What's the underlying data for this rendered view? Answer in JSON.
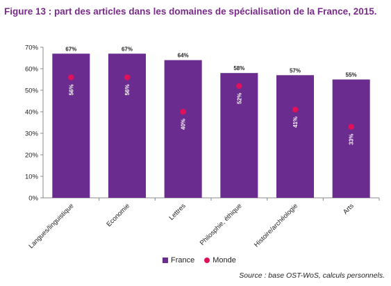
{
  "title": "Figure 13 : part des articles dans les domaines de spécialisation de la France, 2015.",
  "chart_data": {
    "type": "bar",
    "categories": [
      "Langues/linguistique",
      "Economie",
      "Lettres",
      "Philosphie, éthique",
      "Histoire/archéologie",
      "Arts"
    ],
    "series": [
      {
        "name": "France",
        "values": [
          67,
          67,
          64,
          58,
          57,
          55
        ],
        "labels": [
          "67%",
          "67%",
          "64%",
          "58%",
          "57%",
          "55%"
        ],
        "color": "#6a2c8e"
      },
      {
        "name": "Monde",
        "values": [
          56,
          56,
          40,
          52,
          41,
          33
        ],
        "labels": [
          "56%",
          "56%",
          "40%",
          "52%",
          "41%",
          "33%"
        ],
        "color": "#e0105a"
      }
    ],
    "yticks": [
      "0%",
      "10%",
      "20%",
      "30%",
      "40%",
      "50%",
      "60%",
      "70%"
    ],
    "ylim": [
      0,
      70
    ],
    "grid": false,
    "legend_position": "bottom"
  },
  "legend": {
    "france": "France",
    "monde": "Monde"
  },
  "source": "Source : base OST-WoS, calculs personnels."
}
